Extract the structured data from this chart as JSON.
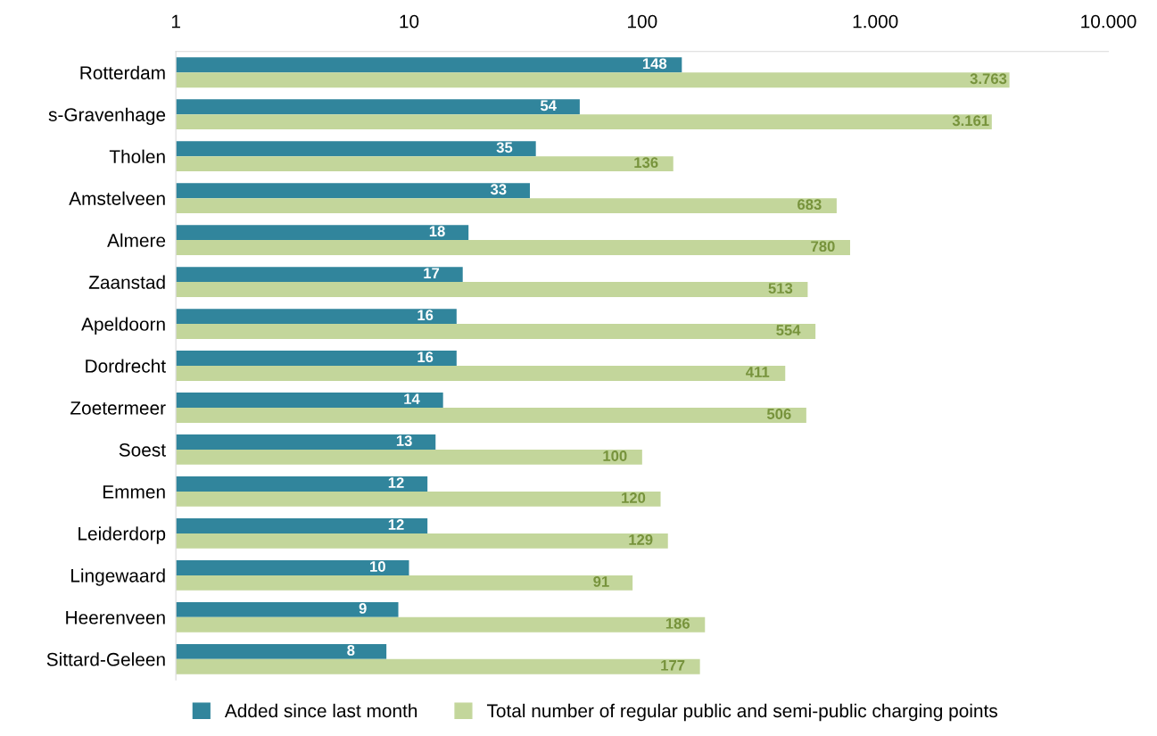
{
  "chart_data": {
    "type": "bar",
    "orientation": "horizontal",
    "log": "x",
    "grid": false,
    "legend": "bottom",
    "categories": [
      "Rotterdam",
      "s-Gravenhage",
      "Tholen",
      "Amstelveen",
      "Almere",
      "Zaanstad",
      "Apeldoorn",
      "Dordrecht",
      "Zoetermeer",
      "Soest",
      "Emmen",
      "Leiderdorp",
      "Lingewaard",
      "Heerenveen",
      "Sittard-Geleen"
    ],
    "xlim": [
      1,
      10000
    ],
    "xticks": [
      1,
      10,
      100,
      {
        "value": 1000,
        "label": "1.000"
      },
      {
        "value": 10000,
        "label": "10.000"
      }
    ],
    "series": [
      {
        "name": "Added since last month",
        "color": "#31859c",
        "values": [
          148,
          54,
          35,
          33,
          18,
          17,
          16,
          16,
          14,
          13,
          12,
          12,
          10,
          9,
          8
        ],
        "value_labels": [
          "148",
          "54",
          "35",
          "33",
          "18",
          "17",
          "16",
          "16",
          "14",
          "13",
          "12",
          "12",
          "10",
          "9",
          "8"
        ]
      },
      {
        "name": "Total number of regular public and semi-public charging points",
        "color": "#c3d69b",
        "values": [
          3763,
          3161,
          136,
          683,
          780,
          513,
          554,
          411,
          506,
          100,
          120,
          129,
          91,
          186,
          177
        ],
        "value_labels": [
          "3.763",
          "3.161",
          "136",
          "683",
          "780",
          "513",
          "554",
          "411",
          "506",
          "100",
          "120",
          "129",
          "91",
          "186",
          "177"
        ]
      }
    ]
  }
}
